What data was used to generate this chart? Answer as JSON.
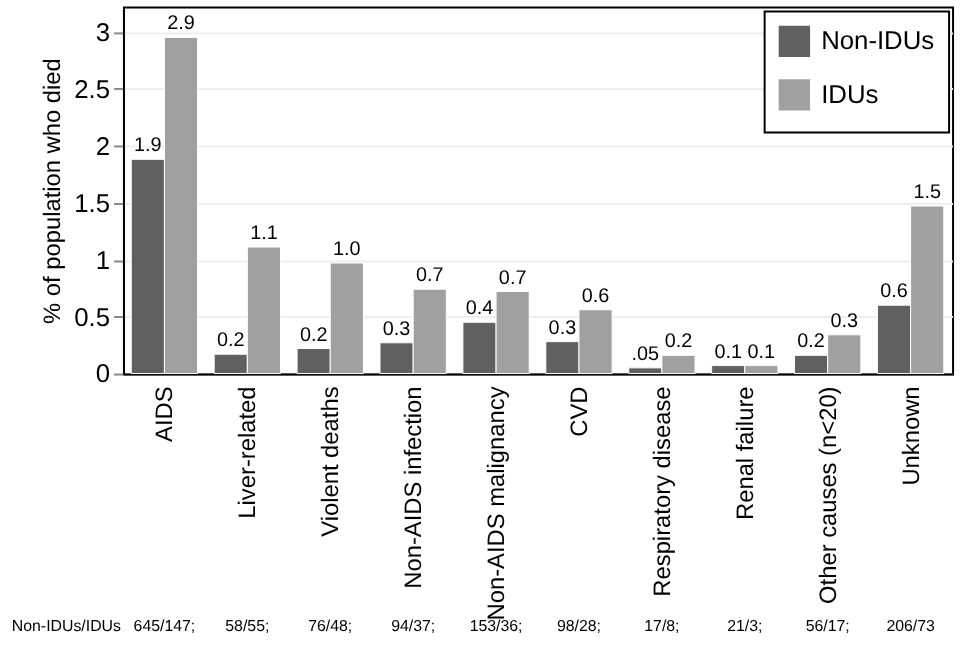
{
  "chart_data": {
    "type": "bar",
    "ylabel": "% of population who died",
    "categories": [
      "AIDS",
      "Liver-related",
      "Violent deaths",
      "Non-AIDS infection",
      "Non-AIDS malignancy",
      "CVD",
      "Respiratory disease",
      "Renal failure",
      "Other causes (n<20)",
      "Unknown"
    ],
    "series": [
      {
        "name": "Non-IDUs",
        "color": "#606060",
        "values": [
          1.88,
          0.17,
          0.22,
          0.27,
          0.45,
          0.28,
          0.05,
          0.07,
          0.16,
          0.6
        ],
        "value_labels": [
          "1.9",
          "0.2",
          "0.2",
          "0.3",
          "0.4",
          "0.3",
          ".05",
          "0.1",
          "0.2",
          "0.6"
        ]
      },
      {
        "name": "IDUs",
        "color": "#a0a0a0",
        "values": [
          2.95,
          1.11,
          0.97,
          0.74,
          0.72,
          0.56,
          0.16,
          0.07,
          0.34,
          1.47
        ],
        "value_labels": [
          "2.9",
          "1.1",
          "1.0",
          "0.7",
          "0.7",
          "0.6",
          "0.2",
          "0.1",
          "0.3",
          "1.5"
        ]
      }
    ],
    "ylim": [
      0,
      3.22
    ],
    "yticks": [
      0,
      0.5,
      1,
      1.5,
      2,
      2.5,
      3
    ],
    "grid": "y",
    "legend": "top right",
    "annotations": [
      "Non-IDUs/IDUs",
      "645/147;",
      "58/55;",
      "76/48;",
      "94/37;",
      "153/36;",
      "98/28;",
      "17/8;",
      "21/3;",
      "56/17;",
      "206/73"
    ]
  }
}
